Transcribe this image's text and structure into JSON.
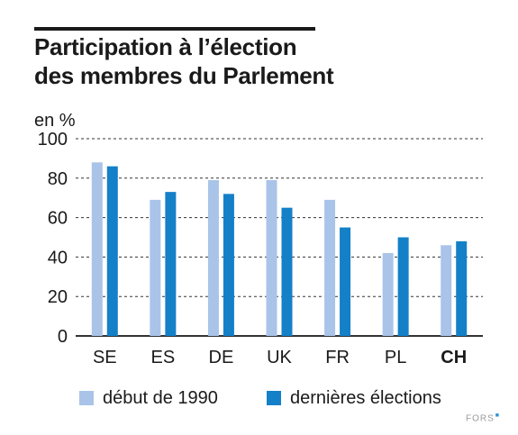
{
  "title": {
    "line1": "Participation à l’élection",
    "line2": "des membres du Parlement"
  },
  "footer": {
    "logo": "FORS"
  },
  "colors": {
    "series_1990": "#a9c4e8",
    "series_last": "#1480c8",
    "gridline": "#333333",
    "text": "#1a1a1a"
  },
  "chart_data": {
    "type": "bar",
    "title": "Participation à l’élection des membres du Parlement",
    "ylabel": "en %",
    "xlabel": "",
    "ylim": [
      0,
      100
    ],
    "yticks": [
      0,
      20,
      40,
      60,
      80,
      100
    ],
    "grid": true,
    "legend_position": "bottom",
    "categories": [
      "SE",
      "ES",
      "DE",
      "UK",
      "FR",
      "PL",
      "CH"
    ],
    "bold_categories": [
      "CH"
    ],
    "series": [
      {
        "name": "début de 1990",
        "color": "#a9c4e8",
        "values": [
          88,
          69,
          79,
          79,
          69,
          42,
          46
        ]
      },
      {
        "name": "dernières élections",
        "color": "#1480c8",
        "values": [
          86,
          73,
          72,
          65,
          55,
          50,
          48
        ]
      }
    ]
  }
}
